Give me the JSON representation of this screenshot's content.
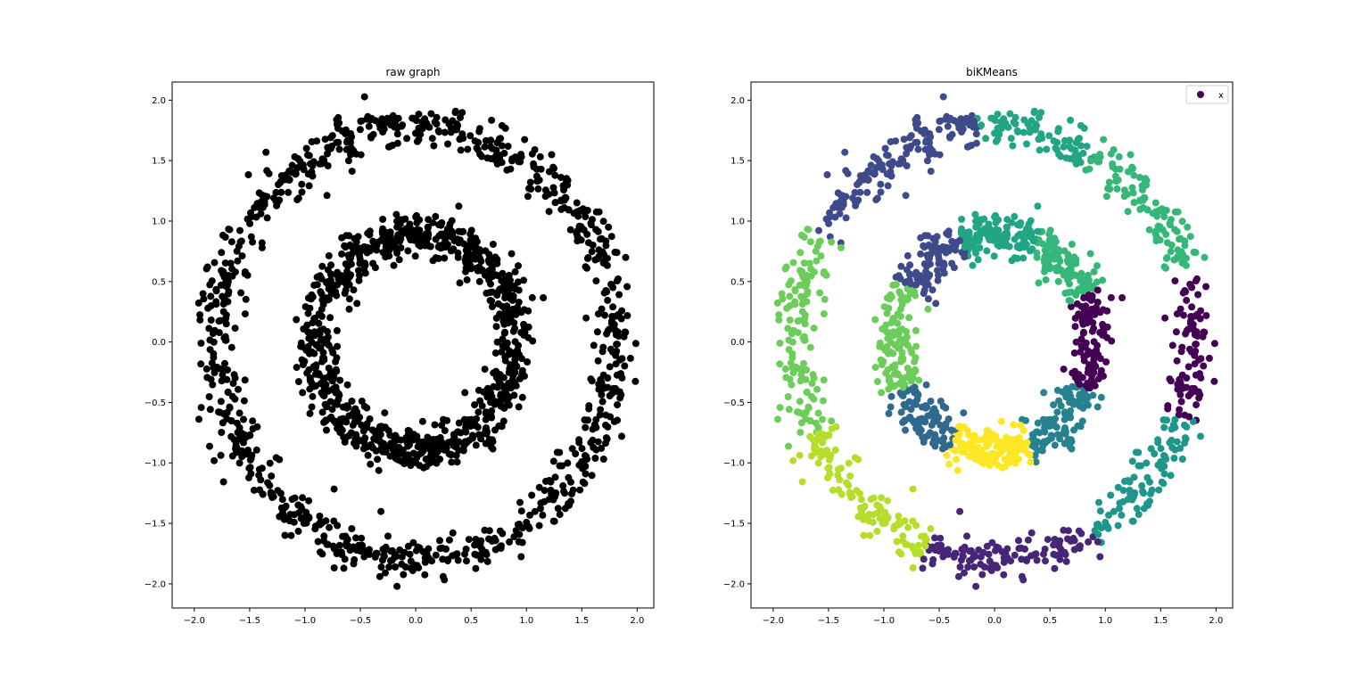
{
  "chart_data": [
    {
      "type": "scatter",
      "title": "raw graph",
      "xlabel": "",
      "ylabel": "",
      "xlim": [
        -2.2,
        2.15
      ],
      "ylim": [
        -2.2,
        2.15
      ],
      "xticks": [
        "−2.0",
        "−1.5",
        "−1.0",
        "−0.5",
        "0.0",
        "0.5",
        "1.0",
        "1.5",
        "2.0"
      ],
      "yticks": [
        "−2.0",
        "−1.5",
        "−1.0",
        "−0.5",
        "0.0",
        "0.5",
        "1.0",
        "1.5",
        "2.0"
      ],
      "grid": false,
      "color": "#000000",
      "data_description": "two concentric noisy rings",
      "rings": [
        {
          "radius": 1.8,
          "noise": 0.09,
          "points": 900
        },
        {
          "radius": 0.9,
          "noise": 0.09,
          "points": 900
        }
      ]
    },
    {
      "type": "scatter",
      "title": "biKMeans",
      "xlabel": "",
      "ylabel": "",
      "xlim": [
        -2.2,
        2.15
      ],
      "ylim": [
        -2.2,
        2.15
      ],
      "xticks": [
        "−2.0",
        "−1.5",
        "−1.0",
        "−0.5",
        "0.0",
        "0.5",
        "1.0",
        "1.5",
        "2.0"
      ],
      "yticks": [
        "−2.0",
        "−1.5",
        "−1.0",
        "−0.5",
        "0.0",
        "0.5",
        "1.0",
        "1.5",
        "2.0"
      ],
      "grid": false,
      "legend": {
        "position": "top-right",
        "entries": [
          {
            "label": "x",
            "color": "#440154"
          }
        ]
      },
      "clusters": [
        {
          "ring": "outer",
          "angle_start": -20,
          "angle_end": 20,
          "color": "#440154"
        },
        {
          "ring": "outer",
          "angle_start": 20,
          "angle_end": 60,
          "color": "#35b779"
        },
        {
          "ring": "outer",
          "angle_start": 60,
          "angle_end": 95,
          "color": "#21a585"
        },
        {
          "ring": "outer",
          "angle_start": 95,
          "angle_end": 150,
          "color": "#3e4a89"
        },
        {
          "ring": "outer",
          "angle_start": 150,
          "angle_end": 205,
          "color": "#6ccd5a"
        },
        {
          "ring": "outer",
          "angle_start": 205,
          "angle_end": 250,
          "color": "#b5de2b"
        },
        {
          "ring": "outer",
          "angle_start": 250,
          "angle_end": 300,
          "color": "#482677"
        },
        {
          "ring": "outer",
          "angle_start": 300,
          "angle_end": 340,
          "color": "#1f968b"
        },
        {
          "ring": "inner",
          "angle_start": -25,
          "angle_end": 25,
          "color": "#440154"
        },
        {
          "ring": "inner",
          "angle_start": 25,
          "angle_end": 65,
          "color": "#35b779"
        },
        {
          "ring": "inner",
          "angle_start": 65,
          "angle_end": 110,
          "color": "#21a585"
        },
        {
          "ring": "inner",
          "angle_start": 110,
          "angle_end": 150,
          "color": "#3e4a89"
        },
        {
          "ring": "inner",
          "angle_start": 150,
          "angle_end": 205,
          "color": "#6ccd5a"
        },
        {
          "ring": "inner",
          "angle_start": 205,
          "angle_end": 245,
          "color": "#31688e"
        },
        {
          "ring": "inner",
          "angle_start": 245,
          "angle_end": 290,
          "color": "#fde725"
        },
        {
          "ring": "inner",
          "angle_start": 290,
          "angle_end": 335,
          "color": "#26828e"
        }
      ],
      "rings": [
        {
          "radius": 1.8,
          "noise": 0.09,
          "points": 900
        },
        {
          "radius": 0.9,
          "noise": 0.09,
          "points": 900
        }
      ]
    }
  ]
}
